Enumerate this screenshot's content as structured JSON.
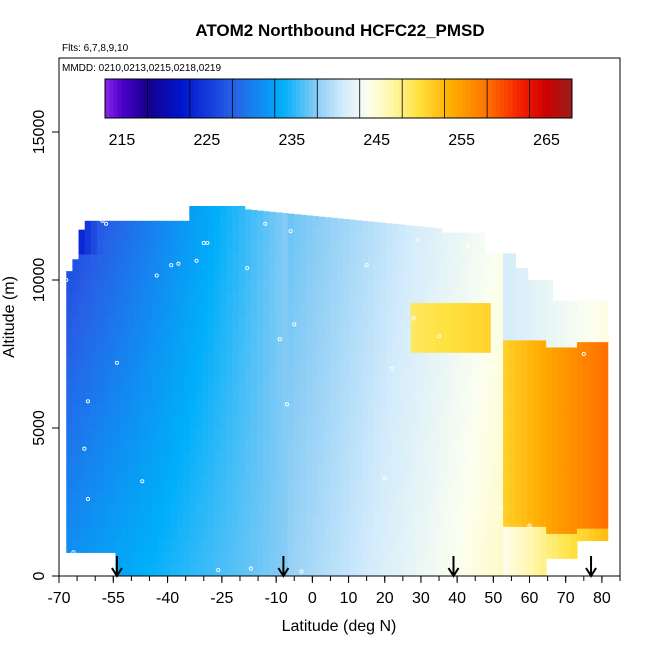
{
  "chart_data": {
    "type": "heatmap",
    "title": "ATOM2 Northbound HCFC22_PMSD",
    "annotations": {
      "flights": "Flts: 6,7,8,9,10",
      "dates": "MMDD: 0210,0213,0215,0218,0219"
    },
    "xlabel": "Latitude (deg N)",
    "ylabel": "Altitude (m)",
    "xlim": [
      -70,
      85
    ],
    "ylim": [
      0,
      17500
    ],
    "x_ticks": [
      -70,
      -55,
      -40,
      -25,
      -10,
      0,
      10,
      20,
      30,
      40,
      50,
      60,
      70,
      80
    ],
    "x_tick_labels": [
      "-70",
      "-55",
      "-40",
      "-25",
      "-10",
      "0",
      "10",
      "20",
      "30",
      "40",
      "50",
      "60",
      "70",
      "80"
    ],
    "y_ticks": [
      0,
      5000,
      10000,
      15000
    ],
    "y_tick_labels": [
      "0",
      "5000",
      "10000",
      "15000"
    ],
    "colorbar": {
      "min": 213,
      "max": 268,
      "ticks": [
        215,
        225,
        235,
        245,
        255,
        265
      ],
      "tick_labels": [
        "215",
        "225",
        "235",
        "245",
        "255",
        "265"
      ]
    },
    "arrows_latitude": [
      -54,
      -8,
      39,
      77
    ],
    "sample_points": [
      [
        -68,
        10000
      ],
      [
        -58,
        12000
      ],
      [
        -57,
        11900
      ],
      [
        -43,
        10150
      ],
      [
        -39,
        10500
      ],
      [
        -37,
        10550
      ],
      [
        -32,
        10650
      ],
      [
        -30,
        11250
      ],
      [
        -29,
        11250
      ],
      [
        -18,
        10400
      ],
      [
        -13,
        11900
      ],
      [
        -6,
        11650
      ],
      [
        -9,
        8000
      ],
      [
        -7,
        5800
      ],
      [
        -54,
        7200
      ],
      [
        -62,
        5900
      ],
      [
        -63,
        4300
      ],
      [
        -62,
        2600
      ],
      [
        -66,
        800
      ],
      [
        -47,
        3200
      ],
      [
        -5,
        8500
      ],
      [
        15,
        10500
      ],
      [
        22,
        7000
      ],
      [
        28,
        8700
      ],
      [
        29,
        11350
      ],
      [
        35,
        8100
      ],
      [
        43,
        11150
      ],
      [
        52,
        2300
      ],
      [
        60,
        1700
      ],
      [
        69,
        9400
      ],
      [
        73,
        9300
      ],
      [
        74,
        9100
      ],
      [
        75,
        7500
      ],
      [
        -26,
        200
      ],
      [
        -17,
        250
      ],
      [
        -3,
        150
      ],
      [
        20,
        3300
      ]
    ]
  }
}
